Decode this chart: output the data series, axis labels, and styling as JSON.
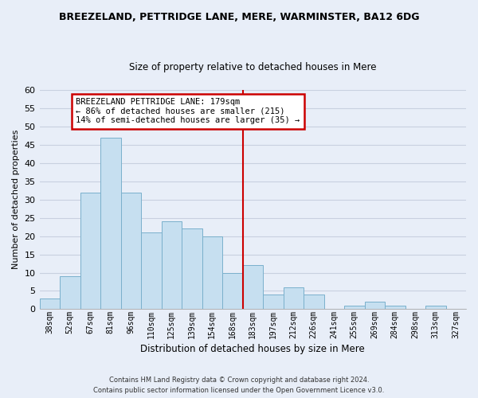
{
  "title": "BREEZELAND, PETTRIDGE LANE, MERE, WARMINSTER, BA12 6DG",
  "subtitle": "Size of property relative to detached houses in Mere",
  "xlabel": "Distribution of detached houses by size in Mere",
  "ylabel": "Number of detached properties",
  "bar_labels": [
    "38sqm",
    "52sqm",
    "67sqm",
    "81sqm",
    "96sqm",
    "110sqm",
    "125sqm",
    "139sqm",
    "154sqm",
    "168sqm",
    "183sqm",
    "197sqm",
    "212sqm",
    "226sqm",
    "241sqm",
    "255sqm",
    "269sqm",
    "284sqm",
    "298sqm",
    "313sqm",
    "327sqm"
  ],
  "bar_values": [
    3,
    9,
    32,
    47,
    32,
    21,
    24,
    22,
    20,
    10,
    12,
    4,
    6,
    4,
    0,
    1,
    2,
    1,
    0,
    1,
    0
  ],
  "bar_color": "#c6dff0",
  "bar_edge_color": "#7ab0cc",
  "vline_idx": 10,
  "vline_color": "#cc0000",
  "ylim": [
    0,
    60
  ],
  "yticks": [
    0,
    5,
    10,
    15,
    20,
    25,
    30,
    35,
    40,
    45,
    50,
    55,
    60
  ],
  "annotation_title": "BREEZELAND PETTRIDGE LANE: 179sqm",
  "annotation_line1": "← 86% of detached houses are smaller (215)",
  "annotation_line2": "14% of semi-detached houses are larger (35) →",
  "annotation_box_color": "#ffffff",
  "annotation_box_edge": "#cc0000",
  "footer_line1": "Contains HM Land Registry data © Crown copyright and database right 2024.",
  "footer_line2": "Contains public sector information licensed under the Open Government Licence v3.0.",
  "bg_color": "#e8eef8",
  "grid_color": "#c8d0e0"
}
